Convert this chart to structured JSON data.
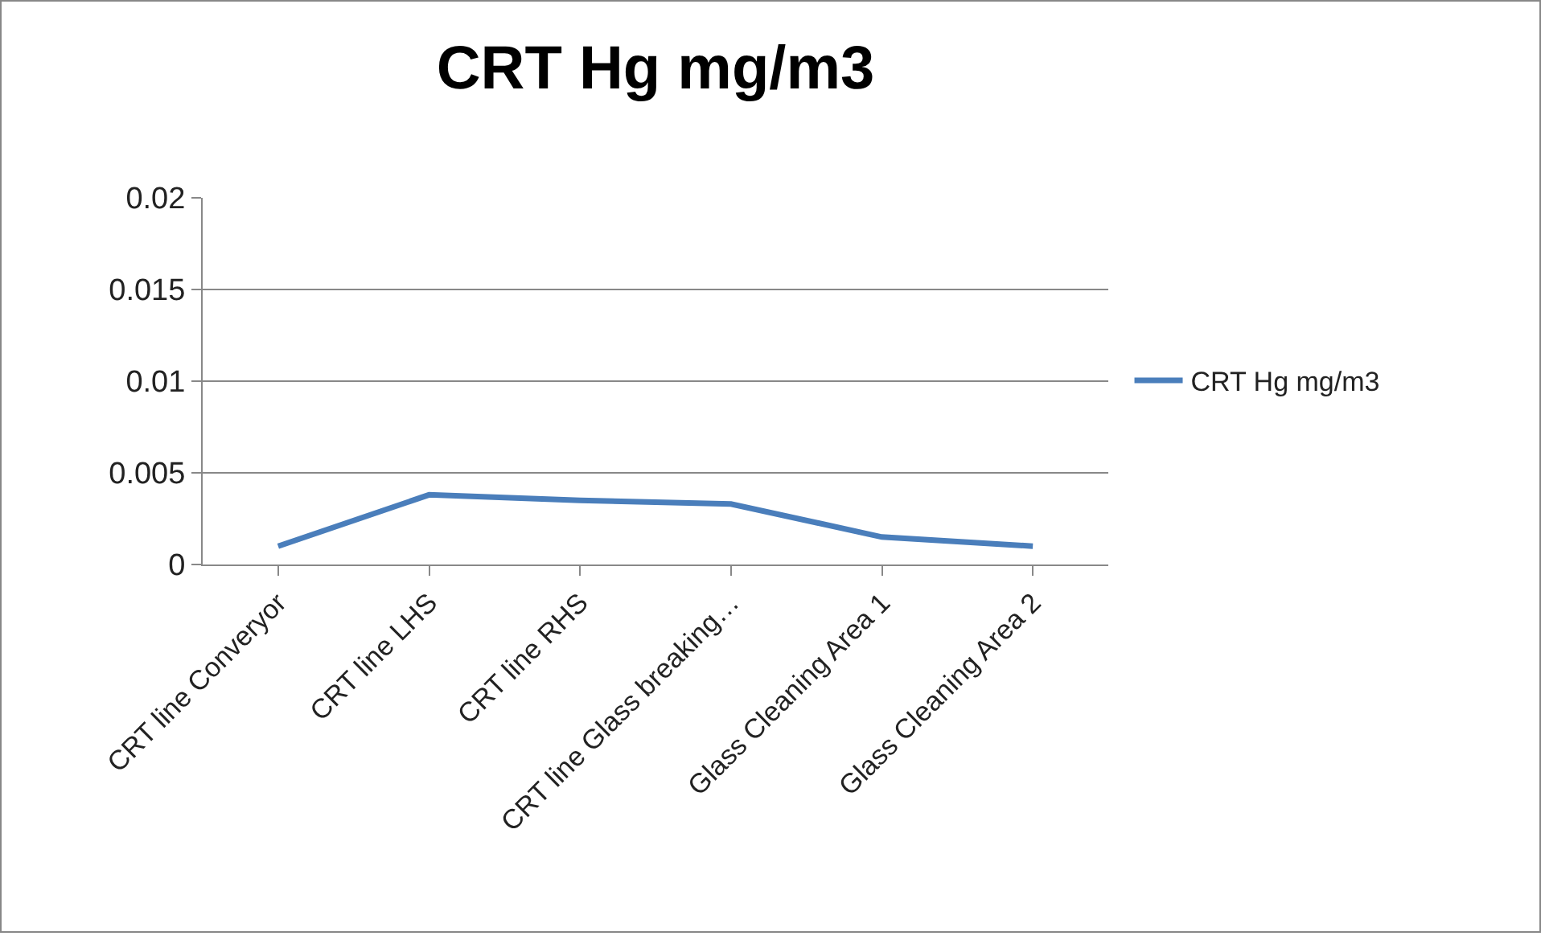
{
  "chart_data": {
    "type": "line",
    "title": "CRT Hg mg/m3",
    "categories": [
      "CRT line Converyor",
      "CRT line LHS",
      "CRT line RHS",
      "CRT line Glass breaking…",
      "Glass Cleaning Area 1",
      "Glass Cleaning Area 2"
    ],
    "series": [
      {
        "name": "CRT Hg mg/m3",
        "color": "#4a7ebb",
        "values": [
          0.001,
          0.0038,
          0.0035,
          0.0033,
          0.0015,
          0.001
        ]
      }
    ],
    "ylim": [
      0,
      0.02
    ],
    "yticks": [
      0,
      0.005,
      0.01,
      0.015,
      0.02
    ],
    "grid": "y",
    "legend": "right",
    "marker": "none",
    "line_style": "solid"
  }
}
